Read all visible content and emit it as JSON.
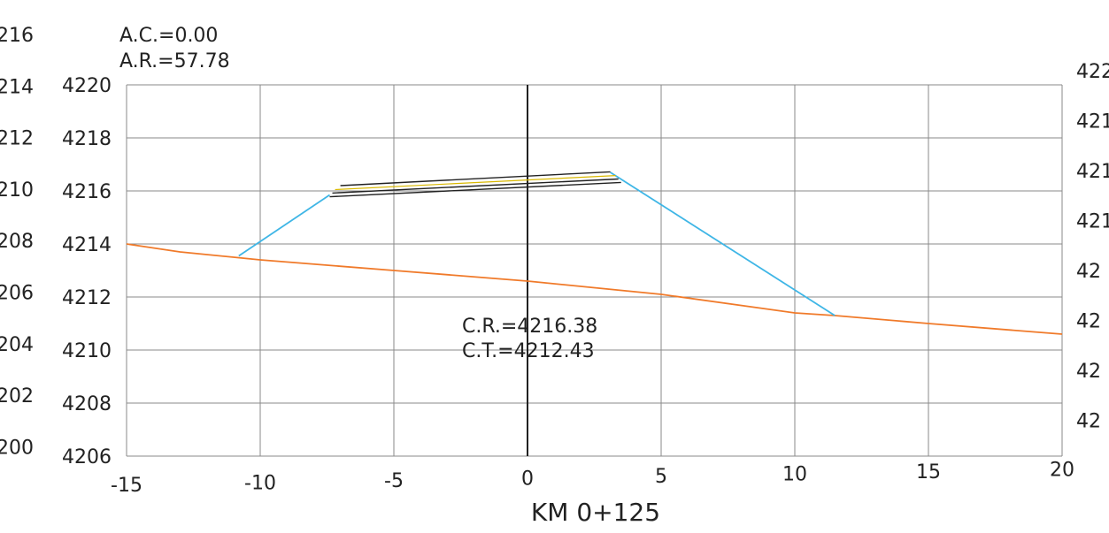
{
  "header": {
    "ac_label": "A.C.=0.00",
    "ar_label": "A.R.=57.78"
  },
  "station_label": "KM 0+125",
  "annotations": {
    "cr_label": "C.R.=4216.38",
    "ct_label": "C.T.=4212.43"
  },
  "axes": {
    "outer_left_ticks": [
      "216",
      "214",
      "212",
      "210",
      "208",
      "206",
      "204",
      "202",
      "200"
    ],
    "left_ticks": [
      "4220",
      "4218",
      "4216",
      "4214",
      "4212",
      "4210",
      "4208",
      "4206"
    ],
    "right_ticks": [
      "422",
      "421",
      "421",
      "421",
      "42",
      "42",
      "42",
      "42"
    ],
    "x_ticks": [
      "-15",
      "-10",
      "-5",
      "0",
      "5",
      "10",
      "15",
      "20"
    ]
  },
  "colors": {
    "grid": "#8a8a8a",
    "centerline": "#222222",
    "terrain": "#f07a2a",
    "slopes": "#3fb6e6",
    "pavement": "#222222",
    "pavement_accent": "#d9b800"
  },
  "chart_data": {
    "type": "line",
    "xlim": [
      -15,
      20
    ],
    "ylim": [
      4206,
      4220
    ],
    "grid": true,
    "series": [
      {
        "role": "terrain",
        "x": [
          -15,
          -13,
          -10,
          -5,
          0,
          3,
          5,
          10,
          11.5,
          15,
          20
        ],
        "y": [
          4214.0,
          4213.7,
          4213.4,
          4213.0,
          4212.6,
          4212.3,
          4212.1,
          4211.4,
          4211.3,
          4211.0,
          4210.6
        ]
      },
      {
        "role": "left-slope",
        "x": [
          -10.8,
          -7.4
        ],
        "y": [
          4213.55,
          4215.85
        ]
      },
      {
        "role": "right-slope",
        "x": [
          3.1,
          11.5
        ],
        "y": [
          4216.7,
          4211.3
        ]
      },
      {
        "role": "pavement-top",
        "x": [
          -7.0,
          3.1
        ],
        "y": [
          4216.2,
          4216.72
        ]
      },
      {
        "role": "pavement-layer-1",
        "x": [
          -7.2,
          3.3
        ],
        "y": [
          4216.05,
          4216.58
        ]
      },
      {
        "role": "pavement-layer-2",
        "x": [
          -7.3,
          3.4
        ],
        "y": [
          4215.92,
          4216.45
        ]
      },
      {
        "role": "pavement-layer-3",
        "x": [
          -7.4,
          3.5
        ],
        "y": [
          4215.78,
          4216.32
        ]
      }
    ]
  }
}
